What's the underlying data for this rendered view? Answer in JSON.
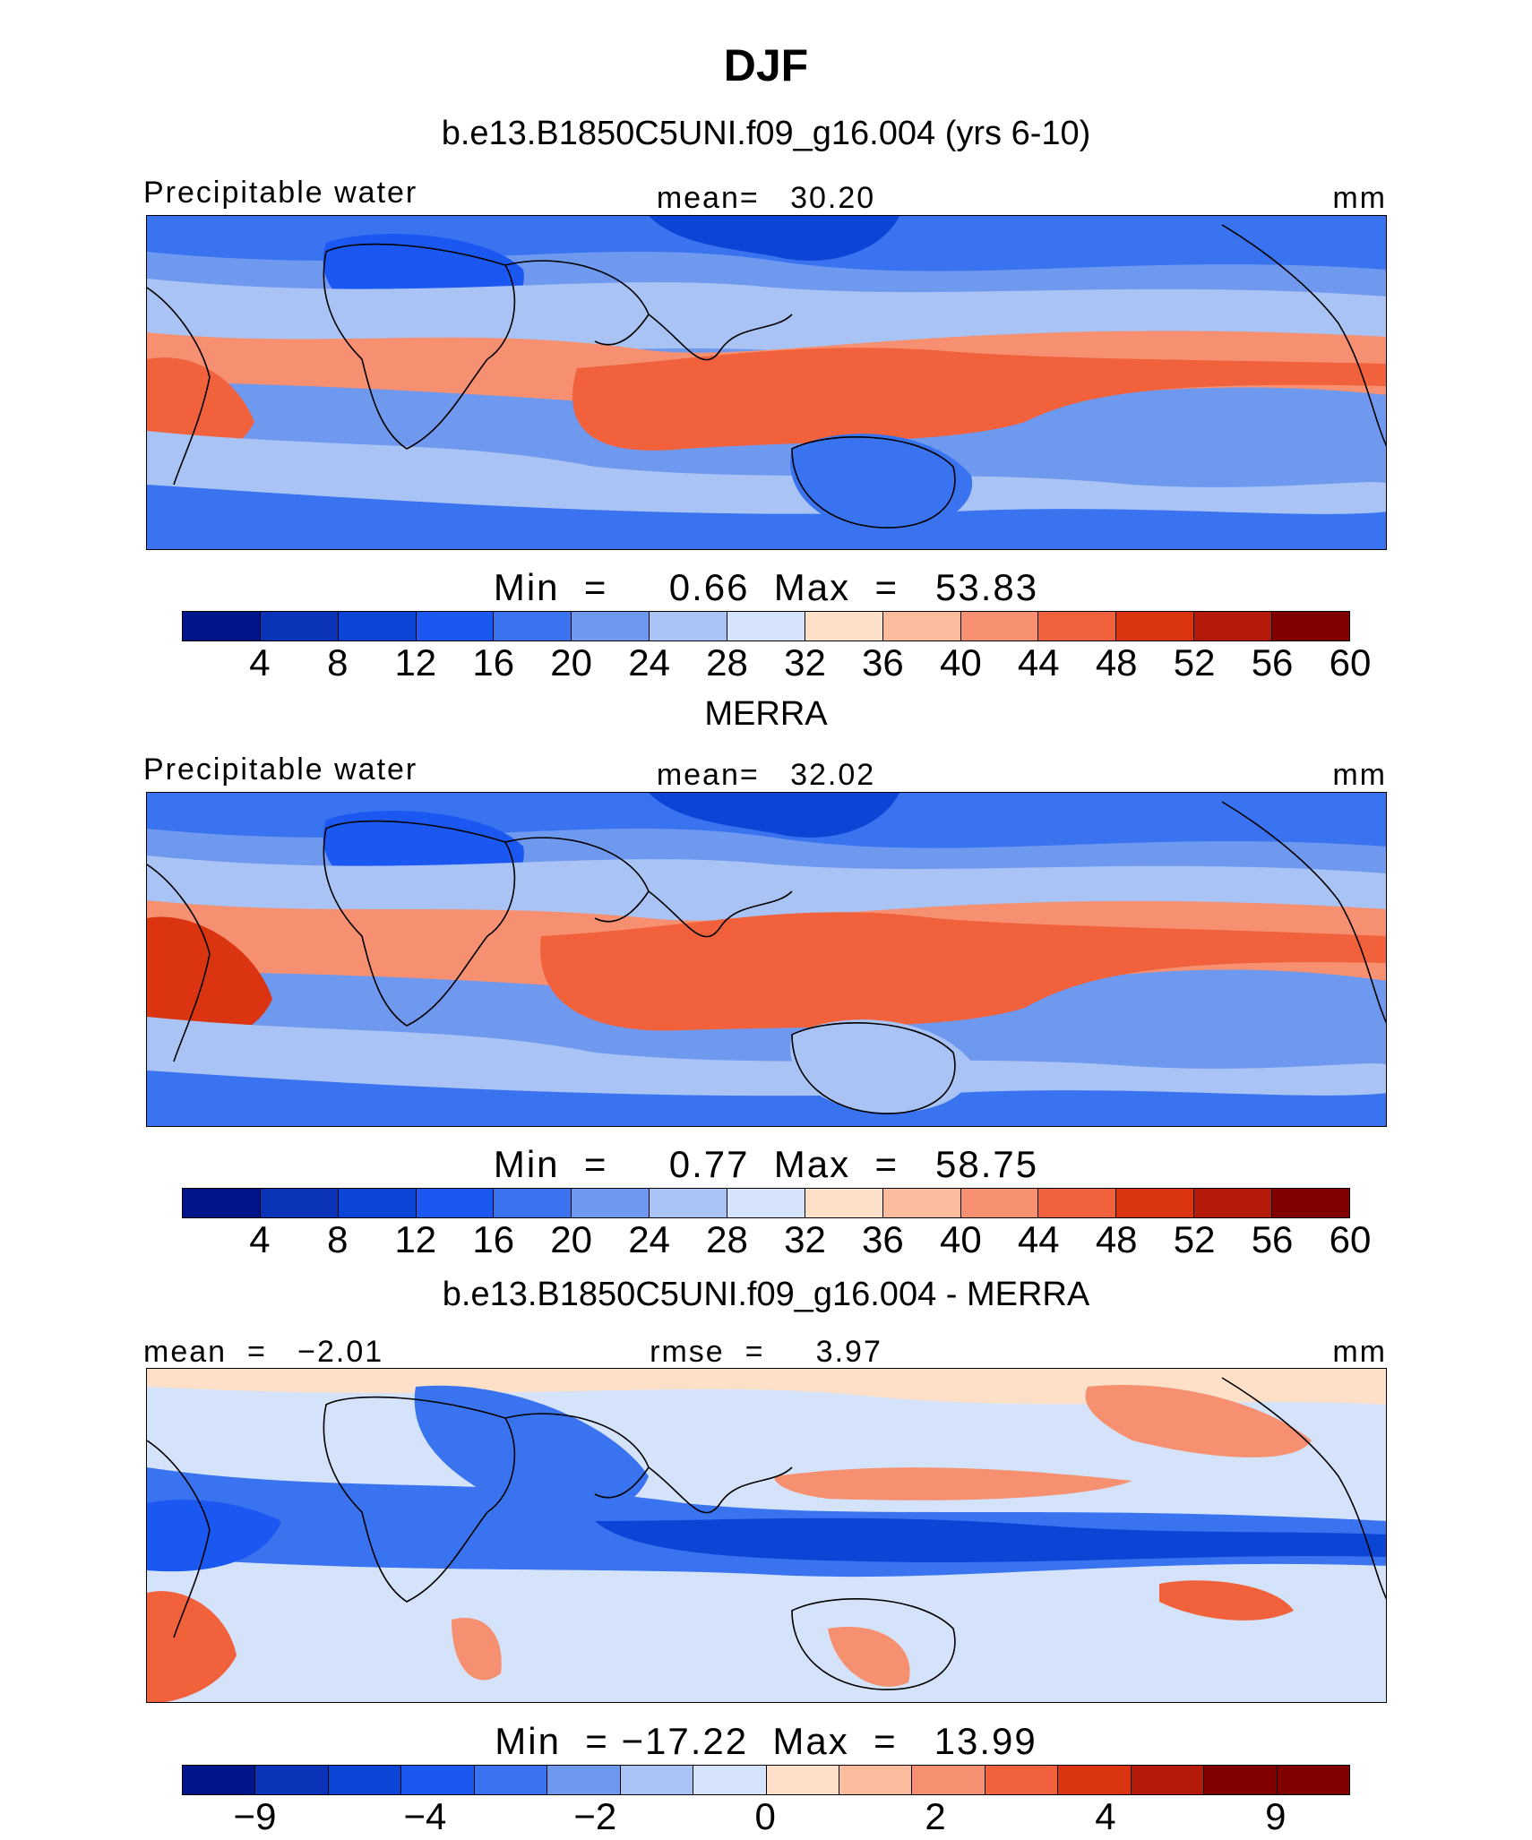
{
  "title": "DJF",
  "panels": [
    {
      "title": "b.e13.B1850C5UNI.f09_g16.004 (yrs 6-10)",
      "left_label": "Precipitable water",
      "center_label": "mean=   30.20",
      "right_label": "mm",
      "minmax": "Min  =     0.66  Max  =   53.83",
      "ticks": [
        "4",
        "8",
        "12",
        "16",
        "20",
        "24",
        "28",
        "32",
        "36",
        "40",
        "44",
        "48",
        "52",
        "56",
        "60"
      ],
      "colors": [
        "#00158a",
        "#0a33b8",
        "#0b45d6",
        "#1b58f2",
        "#3a73f0",
        "#6f98ef",
        "#a8c3f4",
        "#d4e3fa",
        "#fde0c7",
        "#fbbc9e",
        "#f69070",
        "#f1613c",
        "#da3410",
        "#b31a0a",
        "#800000"
      ]
    },
    {
      "title": "MERRA",
      "left_label": "Precipitable water",
      "center_label": "mean=   32.02",
      "right_label": "mm",
      "minmax": "Min  =     0.77  Max  =   58.75",
      "ticks": [
        "4",
        "8",
        "12",
        "16",
        "20",
        "24",
        "28",
        "32",
        "36",
        "40",
        "44",
        "48",
        "52",
        "56",
        "60"
      ],
      "colors": [
        "#00158a",
        "#0a33b8",
        "#0b45d6",
        "#1b58f2",
        "#3a73f0",
        "#6f98ef",
        "#a8c3f4",
        "#d4e3fa",
        "#fde0c7",
        "#fbbc9e",
        "#f69070",
        "#f1613c",
        "#da3410",
        "#b31a0a",
        "#800000"
      ]
    },
    {
      "title": "b.e13.B1850C5UNI.f09_g16.004 - MERRA",
      "left_label": "mean  =   −2.01",
      "center_label": "rmse  =     3.97",
      "right_label": "mm",
      "minmax": "Min  = −17.22  Max  =   13.99",
      "ticks": [
        "−9",
        "−4",
        "−2",
        "0",
        "2",
        "4",
        "9"
      ],
      "colors": [
        "#00158a",
        "#0a33b8",
        "#0b45d6",
        "#1b58f2",
        "#3a73f0",
        "#6f98ef",
        "#a8c3f4",
        "#d4e3fa",
        "#fde0c7",
        "#fbbc9e",
        "#f69070",
        "#f1613c",
        "#da3410",
        "#b31a0a",
        "#800000",
        "#800000"
      ]
    }
  ]
}
